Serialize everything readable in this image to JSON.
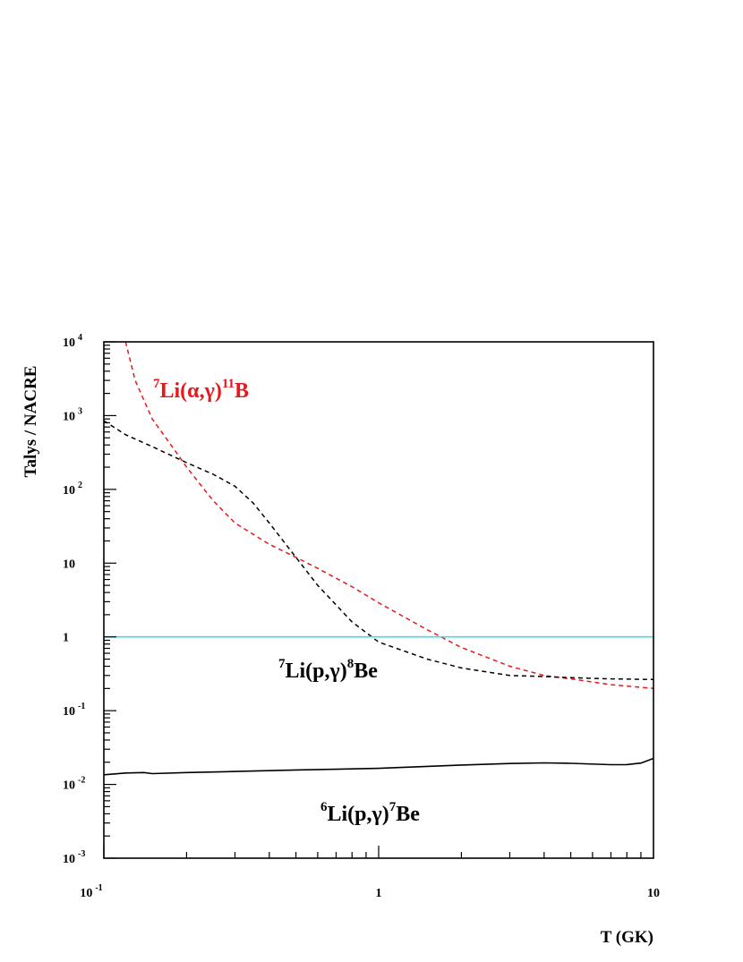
{
  "chart_data": {
    "type": "line",
    "xlabel": "T (GK)",
    "ylabel": "Talys / NACRE",
    "xscale": "log",
    "yscale": "log",
    "xlim": [
      0.1,
      10
    ],
    "ylim": [
      0.001,
      10000
    ],
    "grid": false,
    "x_tick_labels": [
      {
        "value": 0.1,
        "base": "10",
        "exp": "-1"
      },
      {
        "value": 1,
        "base": "1",
        "exp": ""
      },
      {
        "value": 10,
        "base": "10",
        "exp": ""
      }
    ],
    "y_tick_labels": [
      {
        "value": 10000,
        "base": "10",
        "exp": "4"
      },
      {
        "value": 1000,
        "base": "10",
        "exp": "3"
      },
      {
        "value": 100,
        "base": "10",
        "exp": "2"
      },
      {
        "value": 10,
        "base": "10",
        "exp": ""
      },
      {
        "value": 1,
        "base": "1",
        "exp": ""
      },
      {
        "value": 0.1,
        "base": "10",
        "exp": "-1"
      },
      {
        "value": 0.01,
        "base": "10",
        "exp": "-2"
      },
      {
        "value": 0.001,
        "base": "10",
        "exp": "-3"
      }
    ],
    "series": [
      {
        "style": "dashed",
        "color": "#e8171b",
        "x": [
          0.12,
          0.13,
          0.15,
          0.18,
          0.2,
          0.25,
          0.3,
          0.4,
          0.5,
          0.6,
          0.8,
          1.0,
          1.5,
          2.0,
          3.0,
          4.0,
          5.0,
          7.0,
          10.0
        ],
        "y": [
          10000,
          3000,
          900,
          350,
          200,
          70,
          35,
          18,
          12,
          8.5,
          4.8,
          2.9,
          1.25,
          0.72,
          0.4,
          0.3,
          0.27,
          0.225,
          0.2
        ]
      },
      {
        "style": "dashed",
        "color": "#000000",
        "x": [
          0.1,
          0.12,
          0.15,
          0.2,
          0.25,
          0.3,
          0.35,
          0.4,
          0.5,
          0.6,
          0.8,
          1.0,
          1.5,
          2.0,
          3.0,
          4.0,
          5.0,
          7.0,
          10.0
        ],
        "y": [
          850,
          550,
          380,
          230,
          160,
          110,
          65,
          35,
          12,
          5,
          1.6,
          0.85,
          0.5,
          0.38,
          0.3,
          0.29,
          0.28,
          0.27,
          0.265
        ]
      },
      {
        "style": "solid",
        "color": "#000000",
        "x": [
          0.1,
          0.12,
          0.14,
          0.15,
          0.2,
          0.3,
          0.5,
          1.0,
          2.0,
          3.0,
          4.0,
          5.0,
          7.0,
          8.0,
          9.0,
          10.0
        ],
        "y": [
          0.0135,
          0.0143,
          0.0145,
          0.014,
          0.0145,
          0.015,
          0.0157,
          0.0165,
          0.0183,
          0.0192,
          0.0196,
          0.0193,
          0.0185,
          0.0186,
          0.0195,
          0.0225
        ]
      },
      {
        "style": "solid",
        "color": "#44d9e6",
        "x": [
          0.1,
          10.0
        ],
        "y": [
          1.0,
          1.0
        ]
      }
    ],
    "annotations": [
      {
        "parts": [
          [
            "7",
            "sup"
          ],
          [
            "Li(",
            ""
          ],
          [
            "α",
            ""
          ],
          [
            ",",
            ""
          ],
          [
            "γ",
            ""
          ],
          [
            ")",
            ""
          ],
          [
            "11",
            "sup"
          ],
          [
            "B",
            ""
          ]
        ],
        "color": "#e8171b"
      },
      {
        "parts": [
          [
            "7",
            "sup"
          ],
          [
            "Li(p,",
            ""
          ],
          [
            "γ",
            ""
          ],
          [
            ")",
            ""
          ],
          [
            "8",
            "sup"
          ],
          [
            "Be",
            ""
          ]
        ],
        "color": "#000000"
      },
      {
        "parts": [
          [
            "6",
            "sup"
          ],
          [
            "Li(p,",
            ""
          ],
          [
            "γ",
            ""
          ],
          [
            ")",
            ""
          ],
          [
            "7",
            "sup"
          ],
          [
            "Be",
            ""
          ]
        ],
        "color": "#000000"
      }
    ]
  }
}
